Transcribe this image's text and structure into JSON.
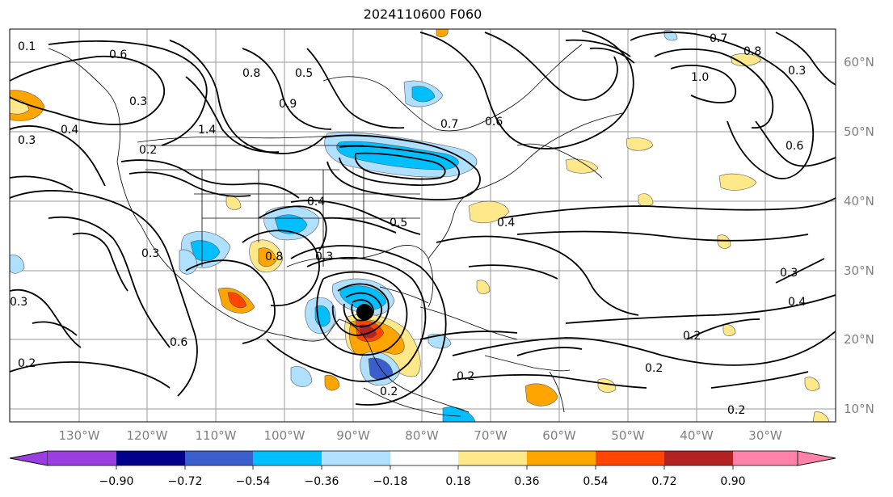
{
  "title": "2024110600 F060",
  "map": {
    "lon_labels": [
      "130°W",
      "120°W",
      "110°W",
      "100°W",
      "90°W",
      "80°W",
      "70°W",
      "60°W",
      "50°W",
      "40°W",
      "30°W"
    ],
    "lat_labels": [
      "60°N",
      "50°N",
      "40°N",
      "30°N",
      "20°N",
      "10°N"
    ],
    "contour_labels": [
      "0.1",
      "0.6",
      "0.3",
      "0.4",
      "0.5",
      "0.7",
      "1.0",
      "0.8",
      "0.2",
      "0.9",
      "1.4",
      "0.3",
      "0.4",
      "0.6",
      "0.3",
      "0.2",
      "0.8",
      "0.3",
      "0.5",
      "0.2",
      "0.3",
      "0.4",
      "0.2",
      "0.6",
      "0.3",
      "0.4",
      "0.2",
      "0.8",
      "0.7",
      "0.2",
      "0.6",
      "0.3",
      "0.2"
    ],
    "storm_marker": "tropical-cyclone-center"
  },
  "colorbar": {
    "ticks": [
      "−0.90",
      "−0.72",
      "−0.54",
      "−0.36",
      "−0.18",
      "0.18",
      "0.36",
      "0.54",
      "0.72",
      "0.90"
    ],
    "colors": [
      "#9a3ee0",
      "#00008b",
      "#3a5fcd",
      "#00bfff",
      "#b0e0ff",
      "#ffffff",
      "#ffe88a",
      "#ffa500",
      "#ff4500",
      "#b22222",
      "#ff82ab"
    ]
  }
}
